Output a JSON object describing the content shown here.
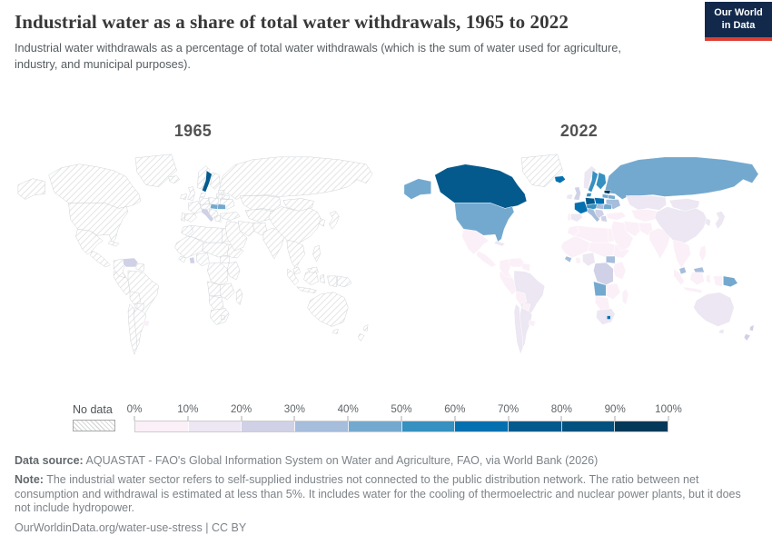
{
  "header": {
    "title": "Industrial water as a share of total water withdrawals, 1965 to 2022",
    "subtitle": "Industrial water withdrawals as a percentage of total water withdrawals (which is the sum of water used for agriculture, industry, and municipal purposes).",
    "logo": {
      "line1": "Our World",
      "line2": "in Data",
      "navy": "#12294b",
      "accent_red": "#dc3e32"
    }
  },
  "chart_data": {
    "type": "heatmap",
    "subtype": "choropleth-world-map",
    "title": "Industrial water as a share of total water withdrawals",
    "unit": "%",
    "legend": {
      "no_data_label": "No data",
      "tick_labels": [
        "0%",
        "10%",
        "20%",
        "30%",
        "40%",
        "50%",
        "60%",
        "70%",
        "80%",
        "90%",
        "100%"
      ],
      "bin_size": 10,
      "range": [
        0,
        100
      ],
      "colors": [
        "#fbf0f7",
        "#ece7f2",
        "#d0d1e6",
        "#a6bddb",
        "#74a9cf",
        "#3690c0",
        "#0570b0",
        "#045a8d",
        "#03517e",
        "#023858"
      ],
      "no_data_pattern": "diagonal-hatch"
    },
    "maps": [
      {
        "id": "y1965",
        "label": "1965",
        "default": "no_data",
        "values": {
          "sweden": 75,
          "hungary": 45,
          "romania": 45,
          "italy": 22,
          "venezuela": 22,
          "ghana": 22,
          "uruguay": 4
        }
      },
      {
        "id": "y2022",
        "label": "2022",
        "default": "no_data",
        "values": {
          "greenland": "no_data",
          "iceland": 68,
          "alaska": 45,
          "canada": 78,
          "usa": 45,
          "mexico": 5,
          "central_america": 4,
          "cuba": 12,
          "colombia": 4,
          "venezuela": 8,
          "guyana": 4,
          "brazil": 14,
          "peru": 4,
          "bolivia": 5,
          "paraguay": 4,
          "chile": 14,
          "argentina": 14,
          "uruguay": 5,
          "ireland": 15,
          "uk": 22,
          "norway": 14,
          "sweden": 55,
          "finland": 55,
          "estonia": 95,
          "baltic_south": 45,
          "denmark": 55,
          "germany": 72,
          "poland": 62,
          "france": 68,
          "spain": 16,
          "portugal": 8,
          "italy": 35,
          "central_europe": 55,
          "hungary": 35,
          "romania": 45,
          "balkans": 28,
          "greece": 24,
          "ukraine": 35,
          "belarus": 40,
          "turkey": 8,
          "russia": 45,
          "kazakhstan": 14,
          "central_asia": 7,
          "mongolia": 14,
          "china": 16,
          "korea": 14,
          "japan": 14,
          "india": 2,
          "pakistan": 1,
          "iran": 1,
          "middle_east": 3,
          "indochina": 5,
          "malaysia": 32,
          "indonesia": 8,
          "png": 45,
          "philippines": 8,
          "morocco": 2,
          "n_africa": 3,
          "egypt": 6,
          "west_africa": 2,
          "sahel": 2,
          "ghana": 8,
          "liberia": 35,
          "nigeria": 14,
          "horn": 2,
          "south_sudan": 38,
          "east_africa": 2,
          "drc": 22,
          "angola": 42,
          "zambia": 8,
          "namibia": 4,
          "south_africa": 14,
          "lesotho": 65,
          "madagascar": 3,
          "australia": 13,
          "new_zealand": 22
        }
      }
    ]
  },
  "footer": {
    "datasource_label": "Data source:",
    "datasource": "AQUASTAT - FAO's Global Information System on Water and Agriculture, FAO, via World Bank (2026)",
    "note_label": "Note:",
    "note": "The industrial water sector refers to self-supplied industries not connected to the public distribution network. The ratio between net consumption and withdrawal is estimated at less than 5%. It includes water for the cooling of thermoelectric and nuclear power plants, but it does not include hydropower.",
    "url": "OurWorldinData.org/water-use-stress",
    "divider": " | ",
    "license": "CC BY"
  }
}
